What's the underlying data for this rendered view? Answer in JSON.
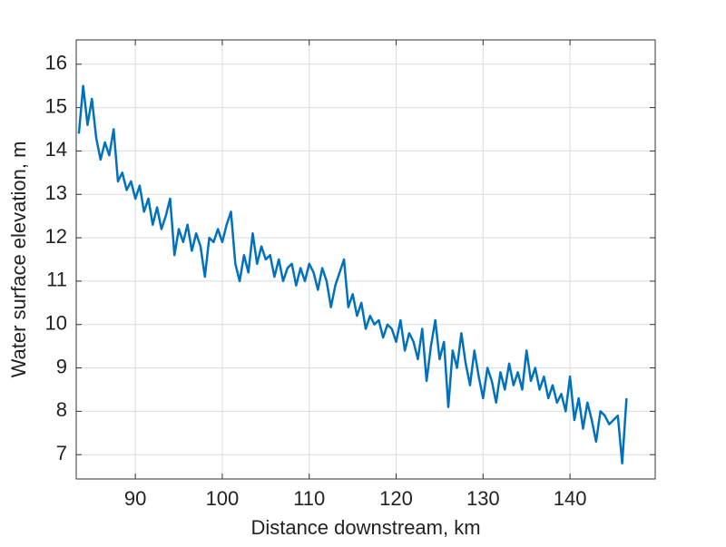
{
  "chart_data": {
    "type": "line",
    "xlabel": "Distance downstream, km",
    "ylabel": "Water surface elevation, m",
    "xlim": [
      83.2,
      149.8
    ],
    "ylim": [
      6.44,
      16.56
    ],
    "xticks": [
      90,
      100,
      110,
      120,
      130,
      140
    ],
    "yticks": [
      7,
      8,
      9,
      10,
      11,
      12,
      13,
      14,
      15,
      16
    ],
    "grid": true,
    "x": [
      83.5,
      84,
      84.5,
      85,
      85.5,
      86,
      86.5,
      87,
      87.5,
      88,
      88.5,
      89,
      89.5,
      90,
      90.5,
      91,
      91.5,
      92,
      92.5,
      93,
      93.5,
      94,
      94.5,
      95,
      95.5,
      96,
      96.5,
      97,
      97.5,
      98,
      98.5,
      99,
      99.5,
      100,
      100.5,
      101,
      101.5,
      102,
      102.5,
      103,
      103.5,
      104,
      104.5,
      105,
      105.5,
      106,
      106.5,
      107,
      107.5,
      108,
      108.5,
      109,
      109.5,
      110,
      110.5,
      111,
      111.5,
      112,
      112.5,
      113,
      113.5,
      114,
      114.5,
      115,
      115.5,
      116,
      116.5,
      117,
      117.5,
      118,
      118.5,
      119,
      119.5,
      120,
      120.5,
      121,
      121.5,
      122,
      122.5,
      123,
      123.5,
      124,
      124.5,
      125,
      125.5,
      126,
      126.5,
      127,
      127.5,
      128,
      128.5,
      129,
      129.5,
      130,
      130.5,
      131,
      131.5,
      132,
      132.5,
      133,
      133.5,
      134,
      134.5,
      135,
      135.5,
      136,
      136.5,
      137,
      137.5,
      138,
      138.5,
      139,
      139.5,
      140,
      140.5,
      141,
      141.5,
      142,
      142.5,
      143,
      143.5,
      144,
      144.5,
      145,
      145.5,
      146,
      146.5
    ],
    "series": [
      {
        "color": "#0072bd",
        "values": [
          14.4,
          15.5,
          14.6,
          15.2,
          14.3,
          13.8,
          14.2,
          13.9,
          14.5,
          13.3,
          13.5,
          13.1,
          13.3,
          12.9,
          13.2,
          12.6,
          12.9,
          12.3,
          12.7,
          12.2,
          12.5,
          12.9,
          11.6,
          12.2,
          11.9,
          12.3,
          11.7,
          12.1,
          11.8,
          11.1,
          12.0,
          11.9,
          12.2,
          11.9,
          12.3,
          12.6,
          11.4,
          11.0,
          11.6,
          11.2,
          12.1,
          11.4,
          11.8,
          11.5,
          11.6,
          11.1,
          11.5,
          11.0,
          11.3,
          11.4,
          10.9,
          11.3,
          11.0,
          11.4,
          11.2,
          10.8,
          11.3,
          11.0,
          10.4,
          10.9,
          11.2,
          11.5,
          10.4,
          10.7,
          10.2,
          10.5,
          9.9,
          10.2,
          10.0,
          10.1,
          9.7,
          10.0,
          9.9,
          9.6,
          10.1,
          9.4,
          9.8,
          9.6,
          9.2,
          9.9,
          8.7,
          9.5,
          10.1,
          9.2,
          9.6,
          8.1,
          9.4,
          9.0,
          9.8,
          9.1,
          8.6,
          9.4,
          8.8,
          8.3,
          9.0,
          8.7,
          8.2,
          8.9,
          8.5,
          9.1,
          8.6,
          8.9,
          8.5,
          9.4,
          8.7,
          9.0,
          8.5,
          8.8,
          8.3,
          8.6,
          8.2,
          8.4,
          8.0,
          8.8,
          7.8,
          8.3,
          7.6,
          8.2,
          7.8,
          7.3,
          8.0,
          7.9,
          7.7,
          7.8,
          7.9,
          6.8,
          8.3
        ]
      }
    ]
  }
}
